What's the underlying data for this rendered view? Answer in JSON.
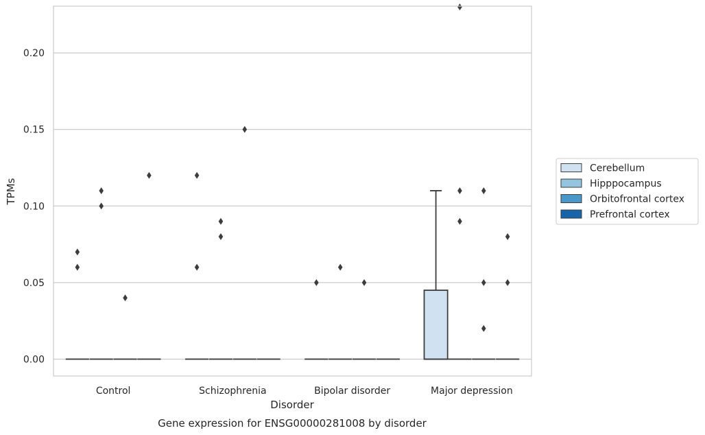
{
  "chart_data": {
    "type": "box",
    "title": "Gene expression for ENSG00000281008 by disorder",
    "xlabel": "Disorder",
    "ylabel": "TPMs",
    "ylim": [
      -0.011,
      0.2305
    ],
    "yticks": [
      0.0,
      0.05,
      0.1,
      0.15,
      0.2
    ],
    "ytick_labels": [
      "0.00",
      "0.05",
      "0.10",
      "0.15",
      "0.20"
    ],
    "grid": true,
    "legend_position": "right",
    "categories": [
      "Control",
      "Schizophrenia",
      "Bipolar disorder",
      "Major depression"
    ],
    "series": [
      {
        "name": "Cerebellum",
        "color": "#d0e1f2"
      },
      {
        "name": "Hipppocampus",
        "color": "#94c4df"
      },
      {
        "name": "Orbitofrontal cortex",
        "color": "#4a98c9"
      },
      {
        "name": "Prefrontal cortex",
        "color": "#1764ab"
      }
    ],
    "boxes": [
      {
        "category": 0,
        "series": 0,
        "q1": 0,
        "median": 0,
        "q3": 0,
        "whisker_low": 0,
        "whisker_high": 0,
        "outliers": [
          0.06,
          0.07
        ]
      },
      {
        "category": 0,
        "series": 1,
        "q1": 0,
        "median": 0,
        "q3": 0,
        "whisker_low": 0,
        "whisker_high": 0,
        "outliers": [
          0.1,
          0.11
        ]
      },
      {
        "category": 0,
        "series": 2,
        "q1": 0,
        "median": 0,
        "q3": 0,
        "whisker_low": 0,
        "whisker_high": 0,
        "outliers": [
          0.04
        ]
      },
      {
        "category": 0,
        "series": 3,
        "q1": 0,
        "median": 0,
        "q3": 0,
        "whisker_low": 0,
        "whisker_high": 0,
        "outliers": [
          0.12
        ]
      },
      {
        "category": 1,
        "series": 0,
        "q1": 0,
        "median": 0,
        "q3": 0,
        "whisker_low": 0,
        "whisker_high": 0,
        "outliers": [
          0.06,
          0.12
        ]
      },
      {
        "category": 1,
        "series": 1,
        "q1": 0,
        "median": 0,
        "q3": 0,
        "whisker_low": 0,
        "whisker_high": 0,
        "outliers": [
          0.08,
          0.09
        ]
      },
      {
        "category": 1,
        "series": 2,
        "q1": 0,
        "median": 0,
        "q3": 0,
        "whisker_low": 0,
        "whisker_high": 0,
        "outliers": [
          0.15
        ]
      },
      {
        "category": 1,
        "series": 3,
        "q1": 0,
        "median": 0,
        "q3": 0,
        "whisker_low": 0,
        "whisker_high": 0,
        "outliers": []
      },
      {
        "category": 2,
        "series": 0,
        "q1": 0,
        "median": 0,
        "q3": 0,
        "whisker_low": 0,
        "whisker_high": 0,
        "outliers": [
          0.05
        ]
      },
      {
        "category": 2,
        "series": 1,
        "q1": 0,
        "median": 0,
        "q3": 0,
        "whisker_low": 0,
        "whisker_high": 0,
        "outliers": [
          0.06
        ]
      },
      {
        "category": 2,
        "series": 2,
        "q1": 0,
        "median": 0,
        "q3": 0,
        "whisker_low": 0,
        "whisker_high": 0,
        "outliers": [
          0.05
        ]
      },
      {
        "category": 2,
        "series": 3,
        "q1": 0,
        "median": 0,
        "q3": 0,
        "whisker_low": 0,
        "whisker_high": 0,
        "outliers": []
      },
      {
        "category": 3,
        "series": 0,
        "q1": 0,
        "median": 0,
        "q3": 0.045,
        "whisker_low": 0,
        "whisker_high": 0.11,
        "outliers": []
      },
      {
        "category": 3,
        "series": 1,
        "q1": 0,
        "median": 0,
        "q3": 0,
        "whisker_low": 0,
        "whisker_high": 0,
        "outliers": [
          0.09,
          0.11,
          0.23
        ]
      },
      {
        "category": 3,
        "series": 2,
        "q1": 0,
        "median": 0,
        "q3": 0,
        "whisker_low": 0,
        "whisker_high": 0,
        "outliers": [
          0.02,
          0.05,
          0.11
        ]
      },
      {
        "category": 3,
        "series": 3,
        "q1": 0,
        "median": 0,
        "q3": 0,
        "whisker_low": 0,
        "whisker_high": 0,
        "outliers": [
          0.05,
          0.08
        ]
      }
    ]
  }
}
